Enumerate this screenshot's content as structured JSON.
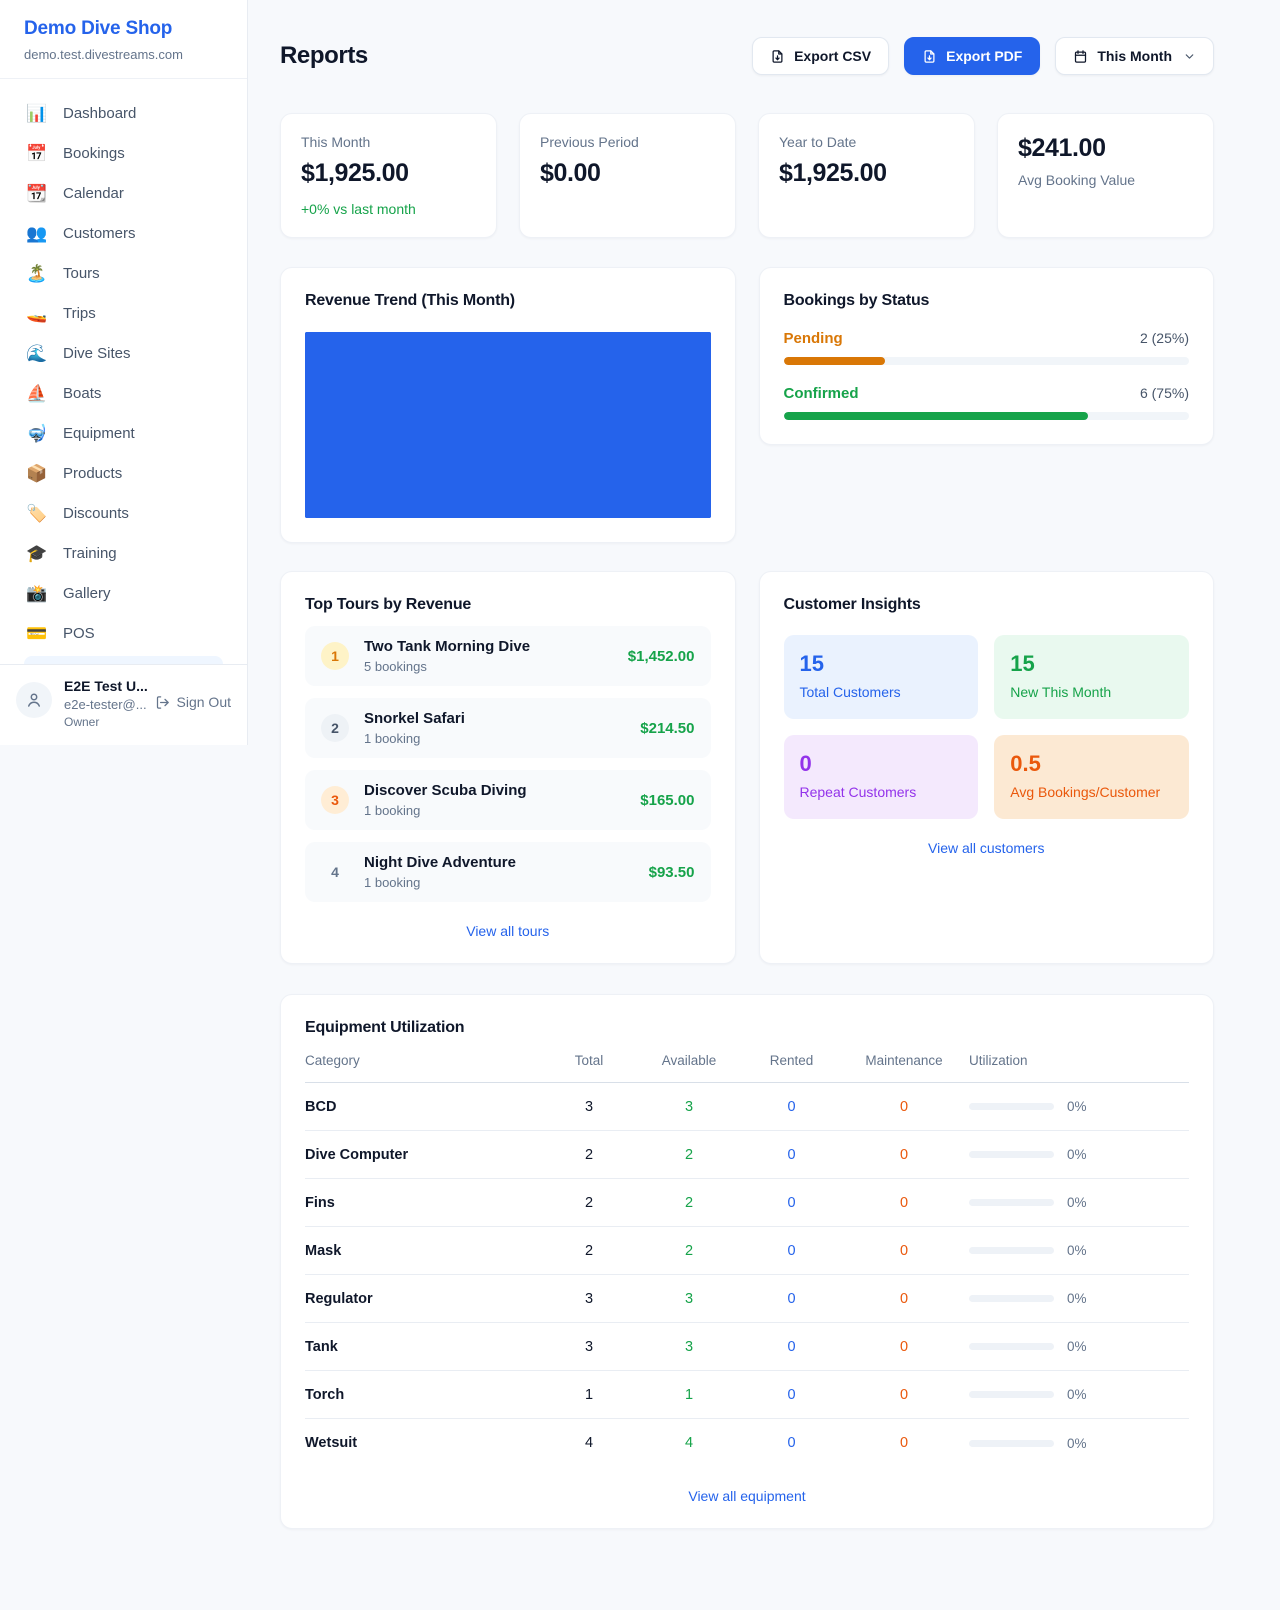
{
  "colors": {
    "accent_blue": "#2563eb",
    "positive_green": "#16a34a",
    "pending_orange": "#d97706",
    "deep_orange": "#ea580c",
    "purple": "#9333ea"
  },
  "sidebar": {
    "brand": {
      "name": "Demo Dive Shop",
      "domain": "demo.test.divestreams.com"
    },
    "items": [
      {
        "icon": "📊",
        "label": "Dashboard"
      },
      {
        "icon": "📅",
        "label": "Bookings"
      },
      {
        "icon": "📆",
        "label": "Calendar"
      },
      {
        "icon": "👥",
        "label": "Customers"
      },
      {
        "icon": "🏝️",
        "label": "Tours"
      },
      {
        "icon": "🚤",
        "label": "Trips"
      },
      {
        "icon": "🌊",
        "label": "Dive Sites"
      },
      {
        "icon": "⛵",
        "label": "Boats"
      },
      {
        "icon": "🤿",
        "label": "Equipment"
      },
      {
        "icon": "📦",
        "label": "Products"
      },
      {
        "icon": "🏷️",
        "label": "Discounts"
      },
      {
        "icon": "🎓",
        "label": "Training"
      },
      {
        "icon": "📸",
        "label": "Gallery"
      },
      {
        "icon": "💳",
        "label": "POS"
      }
    ],
    "user": {
      "name": "E2E Test U...",
      "email": "e2e-tester@...",
      "role": "Owner",
      "sign_out": "Sign Out"
    }
  },
  "header": {
    "title": "Reports",
    "export_csv": "Export CSV",
    "export_pdf": "Export PDF",
    "period": "This Month"
  },
  "stats": [
    {
      "label": "This Month",
      "value": "$1,925.00",
      "delta": "+0% vs last month"
    },
    {
      "label": "Previous Period",
      "value": "$0.00"
    },
    {
      "label": "Year to Date",
      "value": "$1,925.00"
    },
    {
      "label": "Avg Booking Value",
      "value": "$241.00"
    }
  ],
  "revenue_trend": {
    "title": "Revenue Trend (This Month)"
  },
  "bookings_by_status": {
    "title": "Bookings by Status",
    "rows": [
      {
        "label": "Pending",
        "value": "2 (25%)",
        "pct": 25
      },
      {
        "label": "Confirmed",
        "value": "6 (75%)",
        "pct": 75
      }
    ]
  },
  "top_tours": {
    "title": "Top Tours by Revenue",
    "rows": [
      {
        "rank": "1",
        "name": "Two Tank Morning Dive",
        "bookings": "5 bookings",
        "amount": "$1,452.00"
      },
      {
        "rank": "2",
        "name": "Snorkel Safari",
        "bookings": "1 booking",
        "amount": "$214.50"
      },
      {
        "rank": "3",
        "name": "Discover Scuba Diving",
        "bookings": "1 booking",
        "amount": "$165.00"
      },
      {
        "rank": "4",
        "name": "Night Dive Adventure",
        "bookings": "1 booking",
        "amount": "$93.50"
      }
    ],
    "view_all": "View all tours"
  },
  "customer_insights": {
    "title": "Customer Insights",
    "tiles": [
      {
        "value": "15",
        "label": "Total Customers"
      },
      {
        "value": "15",
        "label": "New This Month"
      },
      {
        "value": "0",
        "label": "Repeat Customers"
      },
      {
        "value": "0.5",
        "label": "Avg Bookings/Customer"
      }
    ],
    "view_all": "View all customers"
  },
  "equipment": {
    "title": "Equipment Utilization",
    "columns": [
      "Category",
      "Total",
      "Available",
      "Rented",
      "Maintenance",
      "Utilization"
    ],
    "rows": [
      {
        "category": "BCD",
        "total": "3",
        "available": "3",
        "rented": "0",
        "maintenance": "0",
        "utilization": "0%",
        "utilization_pct": 0
      },
      {
        "category": "Dive Computer",
        "total": "2",
        "available": "2",
        "rented": "0",
        "maintenance": "0",
        "utilization": "0%",
        "utilization_pct": 0
      },
      {
        "category": "Fins",
        "total": "2",
        "available": "2",
        "rented": "0",
        "maintenance": "0",
        "utilization": "0%",
        "utilization_pct": 0
      },
      {
        "category": "Mask",
        "total": "2",
        "available": "2",
        "rented": "0",
        "maintenance": "0",
        "utilization": "0%",
        "utilization_pct": 0
      },
      {
        "category": "Regulator",
        "total": "3",
        "available": "3",
        "rented": "0",
        "maintenance": "0",
        "utilization": "0%",
        "utilization_pct": 0
      },
      {
        "category": "Tank",
        "total": "3",
        "available": "3",
        "rented": "0",
        "maintenance": "0",
        "utilization": "0%",
        "utilization_pct": 0
      },
      {
        "category": "Torch",
        "total": "1",
        "available": "1",
        "rented": "0",
        "maintenance": "0",
        "utilization": "0%",
        "utilization_pct": 0
      },
      {
        "category": "Wetsuit",
        "total": "4",
        "available": "4",
        "rented": "0",
        "maintenance": "0",
        "utilization": "0%",
        "utilization_pct": 0
      }
    ],
    "view_all": "View all equipment"
  },
  "chart_data": [
    {
      "type": "bar",
      "title": "Revenue Trend (This Month)",
      "categories": [
        "This Month"
      ],
      "values": [
        1925
      ],
      "xlabel": "",
      "ylabel": "",
      "note": "single solid blue bar filling the entire plot area",
      "bar_color": "#2563eb",
      "grid": false,
      "legend": false
    },
    {
      "type": "bar",
      "title": "Bookings by Status",
      "categories": [
        "Pending",
        "Confirmed"
      ],
      "values": [
        2,
        6
      ],
      "percentages": [
        25,
        75
      ],
      "labels": [
        "2 (25%)",
        "6 (75%)"
      ],
      "colors": [
        "#d97706",
        "#16a34a"
      ],
      "orientation": "horizontal-progress"
    }
  ]
}
